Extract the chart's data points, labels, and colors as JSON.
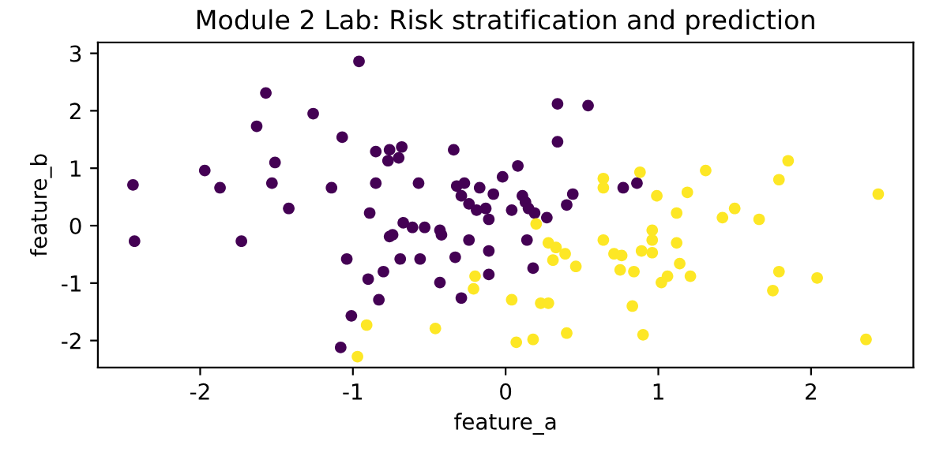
{
  "chart_data": {
    "type": "scatter",
    "title": "Module 2 Lab: Risk stratification and prediction",
    "xlabel": "feature_a",
    "ylabel": "feature_b",
    "xlim": [
      -2.67,
      2.67
    ],
    "ylim": [
      -2.47,
      3.19
    ],
    "xticks": [
      -2,
      -1,
      0,
      1,
      2
    ],
    "yticks": [
      -2,
      -1,
      0,
      1,
      2,
      3
    ],
    "grid": false,
    "marker": "circle",
    "series": [
      {
        "color": "#440154",
        "x": [
          -2.44,
          -2.43,
          -1.73,
          -1.97,
          -1.87,
          -1.63,
          -1.57,
          -1.51,
          -1.53,
          -1.42,
          -1.26,
          -1.07,
          -1.14,
          -0.96,
          -0.85,
          -0.85,
          -0.89,
          -1.04,
          -0.9,
          -0.83,
          -1.01,
          -1.08,
          0.34,
          0.54,
          0.34,
          -0.76,
          -0.68,
          -0.77,
          -0.7,
          -0.34,
          0.08,
          -0.02,
          -0.57,
          -0.32,
          -0.27,
          -0.17,
          -0.08,
          -0.29,
          -0.24,
          -0.13,
          -0.19,
          -0.11,
          0.04,
          0.11,
          0.13,
          0.15,
          0.19,
          0.27,
          0.44,
          0.4,
          0.77,
          0.86,
          -0.67,
          -0.61,
          -0.53,
          -0.43,
          -0.42,
          -0.76,
          -0.74,
          -0.24,
          0.14,
          -0.69,
          -0.56,
          -0.33,
          -0.11,
          0.18,
          -0.8,
          -0.43,
          -0.11,
          -0.29
        ],
        "values": [
          0.71,
          -0.27,
          -0.27,
          0.96,
          0.66,
          1.73,
          2.31,
          1.1,
          0.74,
          0.3,
          1.95,
          1.54,
          0.66,
          2.86,
          1.29,
          0.74,
          0.22,
          -0.58,
          -0.93,
          -1.29,
          -1.57,
          -2.12,
          2.12,
          2.09,
          1.46,
          1.32,
          1.37,
          1.13,
          1.18,
          1.32,
          1.04,
          0.85,
          0.74,
          0.69,
          0.74,
          0.66,
          0.55,
          0.52,
          0.38,
          0.3,
          0.27,
          0.11,
          0.27,
          0.52,
          0.41,
          0.3,
          0.22,
          0.14,
          0.55,
          0.36,
          0.66,
          0.74,
          0.05,
          -0.03,
          -0.03,
          -0.08,
          -0.16,
          -0.19,
          -0.16,
          -0.25,
          -0.25,
          -0.58,
          -0.58,
          -0.55,
          -0.44,
          -0.74,
          -0.8,
          -0.99,
          -0.85,
          -1.26
        ]
      },
      {
        "color": "#fde725",
        "x": [
          -0.91,
          -0.97,
          0.2,
          0.28,
          0.33,
          0.31,
          0.39,
          0.46,
          0.64,
          0.64,
          0.88,
          0.64,
          0.71,
          0.76,
          0.75,
          0.84,
          0.89,
          -0.2,
          -0.21,
          0.04,
          0.23,
          0.28,
          0.83,
          -0.46,
          0.07,
          0.18,
          0.4,
          0.9,
          1.31,
          1.85,
          1.79,
          2.44,
          0.99,
          1.19,
          1.12,
          1.5,
          1.42,
          1.66,
          0.96,
          0.96,
          1.12,
          0.96,
          1.14,
          1.06,
          1.02,
          1.21,
          1.79,
          2.04,
          1.75,
          2.36
        ],
        "values": [
          -1.73,
          -2.28,
          0.03,
          -0.3,
          -0.38,
          -0.6,
          -0.49,
          -0.71,
          0.82,
          0.66,
          0.93,
          -0.25,
          -0.49,
          -0.52,
          -0.77,
          -0.8,
          -0.44,
          -0.88,
          -1.1,
          -1.29,
          -1.35,
          -1.35,
          -1.4,
          -1.79,
          -2.03,
          -1.98,
          -1.87,
          -1.9,
          0.96,
          1.13,
          0.8,
          0.55,
          0.52,
          0.58,
          0.22,
          0.3,
          0.14,
          0.11,
          -0.08,
          -0.25,
          -0.3,
          -0.47,
          -0.66,
          -0.88,
          -0.99,
          -0.88,
          -0.8,
          -0.91,
          -1.13,
          -1.98
        ]
      }
    ]
  }
}
